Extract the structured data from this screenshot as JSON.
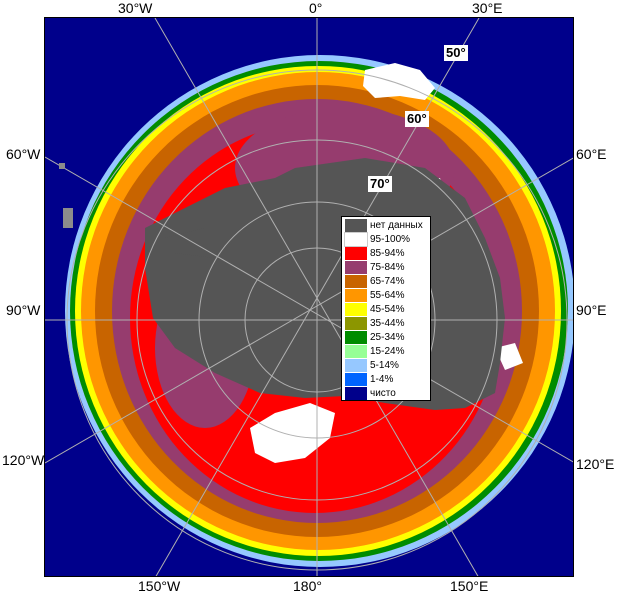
{
  "map": {
    "colors": {
      "ocean": "#00008b",
      "no_data": "#555555",
      "land_mask": "#8c8c8c",
      "graticule": "#b0b0b0"
    }
  },
  "axes": {
    "top": [
      "30°W",
      "0°",
      "30°E"
    ],
    "left": [
      "60°W",
      "90°W",
      "120°W"
    ],
    "right": [
      "60°E",
      "90°E",
      "120°E"
    ],
    "bottom": [
      "150°W",
      "180°",
      "150°E"
    ]
  },
  "latitude_labels": [
    "50°",
    "60°",
    "70°"
  ],
  "legend": {
    "items": [
      {
        "label": "нет данных",
        "color": "#555555"
      },
      {
        "label": "95-100%",
        "color": "#ffffff"
      },
      {
        "label": "85-94%",
        "color": "#ff0000"
      },
      {
        "label": "75-84%",
        "color": "#963c6e"
      },
      {
        "label": "65-74%",
        "color": "#c86400"
      },
      {
        "label": "55-64%",
        "color": "#ff9600"
      },
      {
        "label": "45-54%",
        "color": "#ffff00"
      },
      {
        "label": "35-44%",
        "color": "#8c9600"
      },
      {
        "label": "25-34%",
        "color": "#008c00"
      },
      {
        "label": "15-24%",
        "color": "#96ff96"
      },
      {
        "label": "5-14%",
        "color": "#96c8ff"
      },
      {
        "label": "1-4%",
        "color": "#0064ff"
      },
      {
        "label": "чисто",
        "color": "#00008b"
      }
    ]
  }
}
